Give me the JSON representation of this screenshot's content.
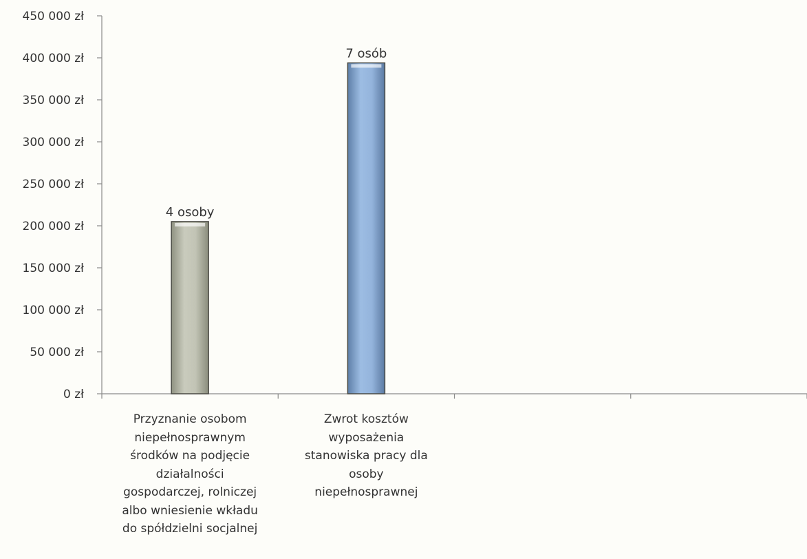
{
  "chart_data": {
    "type": "bar",
    "title": "",
    "xlabel": "",
    "ylabel": "",
    "ylim": [
      0,
      450000
    ],
    "y_tick_step": 50000,
    "y_tick_labels": [
      "0 zł",
      "50 000 zł",
      "100 000 zł",
      "150 000 zł",
      "200 000 zł",
      "250 000 zł",
      "300 000 zł",
      "350 000 zł",
      "400 000 zł",
      "450 000 zł"
    ],
    "category_slots": 4,
    "grid": false,
    "legend": "none",
    "categories": [
      [
        "Przyznanie osobom",
        "niepełnosprawnym",
        "środków na podjęcie",
        "działalności",
        "gospodarczej, rolniczej",
        "albo wniesienie wkładu",
        "do spółdzielni socjalnej"
      ],
      [
        "Zwrot kosztów",
        "wyposażenia",
        "stanowiska pracy dla",
        "osoby",
        "niepełnosprawnej"
      ]
    ],
    "values": [
      205000,
      394000
    ],
    "data_labels": [
      "4 osoby",
      "7 osób"
    ],
    "colors": [
      "#b9bbab",
      "#8eb0d8"
    ]
  }
}
